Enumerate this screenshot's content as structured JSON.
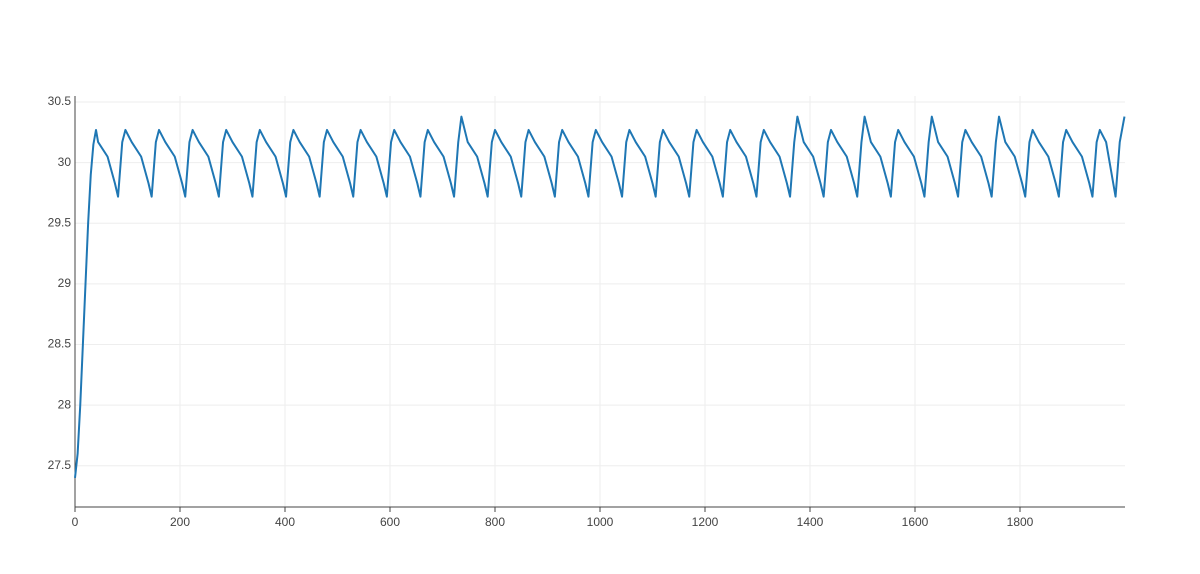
{
  "chart_data": {
    "type": "line",
    "color": "#1f77b4",
    "grid": true,
    "xlim": [
      0,
      2000
    ],
    "xticks": [
      0,
      200,
      400,
      600,
      800,
      1000,
      1200,
      1400,
      1600,
      1800
    ],
    "ylim": [
      27.16,
      30.55
    ],
    "yticks": [
      27.5,
      28,
      28.5,
      29,
      29.5,
      30,
      30.5
    ],
    "x": [
      0,
      5,
      10,
      15,
      20,
      25,
      30,
      35,
      40,
      44,
      62,
      76,
      82,
      90,
      96,
      108,
      126,
      140,
      146,
      154,
      160,
      172,
      190,
      204,
      210,
      218,
      224,
      236,
      254,
      268,
      274,
      282,
      288,
      300,
      318,
      332,
      338,
      346,
      352,
      364,
      382,
      396,
      402,
      410,
      416,
      428,
      446,
      460,
      466,
      474,
      480,
      492,
      510,
      524,
      530,
      538,
      544,
      556,
      574,
      588,
      594,
      602,
      608,
      620,
      638,
      652,
      658,
      666,
      672,
      684,
      702,
      716,
      722,
      730,
      736,
      748,
      766,
      780,
      786,
      794,
      800,
      812,
      830,
      844,
      850,
      858,
      864,
      876,
      894,
      908,
      914,
      922,
      928,
      940,
      958,
      972,
      978,
      986,
      992,
      1004,
      1022,
      1036,
      1042,
      1050,
      1056,
      1068,
      1086,
      1100,
      1106,
      1114,
      1120,
      1132,
      1150,
      1164,
      1170,
      1178,
      1184,
      1196,
      1214,
      1228,
      1234,
      1242,
      1248,
      1260,
      1278,
      1292,
      1298,
      1306,
      1312,
      1324,
      1342,
      1356,
      1362,
      1370,
      1376,
      1388,
      1406,
      1420,
      1426,
      1434,
      1440,
      1452,
      1470,
      1484,
      1490,
      1498,
      1504,
      1516,
      1534,
      1548,
      1554,
      1562,
      1568,
      1580,
      1598,
      1612,
      1618,
      1626,
      1632,
      1644,
      1662,
      1676,
      1682,
      1690,
      1696,
      1708,
      1726,
      1740,
      1746,
      1754,
      1760,
      1772,
      1790,
      1804,
      1810,
      1818,
      1824,
      1836,
      1854,
      1868,
      1874,
      1882,
      1888,
      1900,
      1918,
      1932,
      1938,
      1946,
      1952,
      1964,
      1982,
      1990,
      1999
    ],
    "values": [
      27.4,
      27.6,
      28.0,
      28.5,
      29.0,
      29.5,
      29.9,
      30.15,
      30.27,
      30.17,
      30.05,
      29.83,
      29.72,
      30.17,
      30.27,
      30.17,
      30.05,
      29.83,
      29.72,
      30.17,
      30.27,
      30.17,
      30.05,
      29.83,
      29.72,
      30.17,
      30.27,
      30.17,
      30.05,
      29.83,
      29.72,
      30.17,
      30.27,
      30.17,
      30.05,
      29.83,
      29.72,
      30.17,
      30.27,
      30.17,
      30.05,
      29.83,
      29.72,
      30.17,
      30.27,
      30.17,
      30.05,
      29.83,
      29.72,
      30.17,
      30.27,
      30.17,
      30.05,
      29.83,
      29.72,
      30.17,
      30.27,
      30.17,
      30.05,
      29.83,
      29.72,
      30.17,
      30.27,
      30.17,
      30.05,
      29.83,
      29.72,
      30.17,
      30.27,
      30.17,
      30.05,
      29.83,
      29.72,
      30.17,
      30.38,
      30.17,
      30.05,
      29.83,
      29.72,
      30.17,
      30.27,
      30.17,
      30.05,
      29.83,
      29.72,
      30.17,
      30.27,
      30.17,
      30.05,
      29.83,
      29.72,
      30.17,
      30.27,
      30.17,
      30.05,
      29.83,
      29.72,
      30.17,
      30.27,
      30.17,
      30.05,
      29.83,
      29.72,
      30.17,
      30.27,
      30.17,
      30.05,
      29.83,
      29.72,
      30.17,
      30.27,
      30.17,
      30.05,
      29.83,
      29.72,
      30.17,
      30.27,
      30.17,
      30.05,
      29.83,
      29.72,
      30.17,
      30.27,
      30.17,
      30.05,
      29.83,
      29.72,
      30.17,
      30.27,
      30.17,
      30.05,
      29.83,
      29.72,
      30.17,
      30.38,
      30.17,
      30.05,
      29.83,
      29.72,
      30.17,
      30.27,
      30.17,
      30.05,
      29.83,
      29.72,
      30.17,
      30.38,
      30.17,
      30.05,
      29.83,
      29.72,
      30.17,
      30.27,
      30.17,
      30.05,
      29.83,
      29.72,
      30.17,
      30.38,
      30.17,
      30.05,
      29.83,
      29.72,
      30.17,
      30.27,
      30.17,
      30.05,
      29.83,
      29.72,
      30.17,
      30.38,
      30.17,
      30.05,
      29.83,
      29.72,
      30.17,
      30.27,
      30.17,
      30.05,
      29.83,
      29.72,
      30.17,
      30.27,
      30.17,
      30.05,
      29.83,
      29.72,
      30.17,
      30.27,
      30.17,
      29.72,
      30.17,
      30.38
    ]
  }
}
